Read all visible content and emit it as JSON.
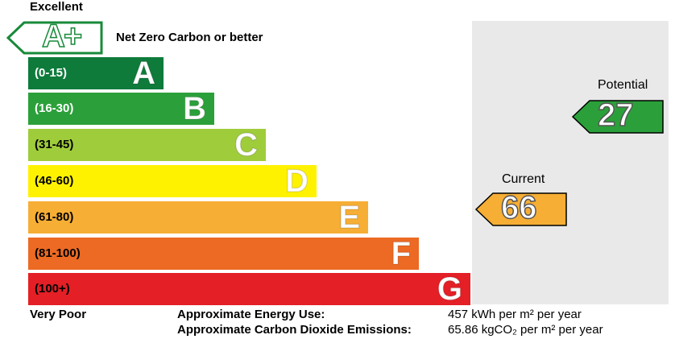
{
  "top_label": "Excellent",
  "bottom_label": "Very Poor",
  "aplus": {
    "letter": "A+",
    "caption": "Net Zero Carbon or better"
  },
  "bands": [
    {
      "range": "(0-15)",
      "letter": "A",
      "color": "#0e7b3b",
      "text_color": "#ffffff"
    },
    {
      "range": "(16-30)",
      "letter": "B",
      "color": "#2ba03a",
      "text_color": "#ffffff"
    },
    {
      "range": "(31-45)",
      "letter": "C",
      "color": "#9fcc3b",
      "text_color": "#000000"
    },
    {
      "range": "(46-60)",
      "letter": "D",
      "color": "#fff200",
      "text_color": "#000000"
    },
    {
      "range": "(61-80)",
      "letter": "E",
      "color": "#f6ae35",
      "text_color": "#000000"
    },
    {
      "range": "(81-100)",
      "letter": "F",
      "color": "#ec6a23",
      "text_color": "#000000"
    },
    {
      "range": "(100+)",
      "letter": "G",
      "color": "#e41f26",
      "text_color": "#000000"
    }
  ],
  "current": {
    "title": "Current",
    "value": "66",
    "color": "#f6ae35"
  },
  "potential": {
    "title": "Potential",
    "value": "27",
    "color": "#2ba03a"
  },
  "footer": {
    "energy_label": "Approximate Energy Use:",
    "energy_value": "457 kWh per m² per year",
    "co2_label": "Approximate Carbon Dioxide Emissions:",
    "co2_value": "65.86 kgCO₂ per m² per year"
  }
}
